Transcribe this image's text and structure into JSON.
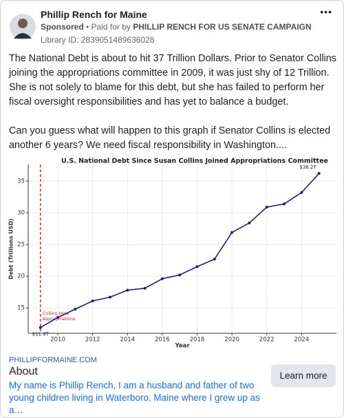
{
  "header": {
    "page_name": "Phillip Rench for Maine",
    "sponsored": "Sponsored",
    "paid_for_prefix": "Paid for by",
    "paid_for": "PHILLIP RENCH FOR US SENATE CAMPAIGN",
    "library_id": "Library ID: 2839051489636028"
  },
  "body": {
    "paragraphs": [
      "The National Debt is about to hit 37 Trillion Dollars. Prior to Senator Collins joining the appropriations committee in 2009, it was just shy of 12 Trillion. She is not solely to blame for this debt, but she has failed to perform her fiscal oversight responsibilities and has yet to balance a budget.",
      "Can you guess what will happen to this graph if Senator Collins is elected another 6 years? We need fiscal responsibility in Washington...."
    ]
  },
  "chart_data": {
    "type": "line",
    "title": "U.S. National Debt Since Susan Collins Joined Appropriations Committee",
    "xlabel": "Year",
    "ylabel": "Debt (Trillions USD)",
    "x": [
      2009,
      2010,
      2011,
      2012,
      2013,
      2014,
      2015,
      2016,
      2017,
      2018,
      2019,
      2020,
      2021,
      2022,
      2023,
      2024,
      2025
    ],
    "values": [
      11.9,
      13.5,
      14.8,
      16.1,
      16.7,
      17.8,
      18.1,
      19.6,
      20.2,
      21.5,
      22.7,
      26.9,
      28.4,
      30.9,
      31.4,
      33.2,
      36.2
    ],
    "color": "#1f1f6e",
    "xlim": [
      2008.3,
      2026
    ],
    "xticks": [
      2010,
      2012,
      2014,
      2016,
      2018,
      2020,
      2022,
      2024
    ],
    "ylim": [
      11,
      37.6
    ],
    "yticks": [
      15,
      20,
      25,
      30,
      35
    ],
    "grid": true,
    "annotations": [
      {
        "x": 2009,
        "y": 11.9,
        "text": "$11.9T"
      },
      {
        "x": 2025,
        "y": 36.2,
        "text": "$36.2T"
      }
    ],
    "vline": {
      "x": 2009,
      "color": "#d62728",
      "label": [
        "Collins Joins",
        "Appropriations"
      ]
    }
  },
  "link": {
    "domain": "PHILLIPFORMAINE.COM",
    "title": "About",
    "description": "My name is Phillip Rench, I am a husband and father of two young children living in Waterboro, Maine where I grew up as a…",
    "button": "Learn more"
  }
}
